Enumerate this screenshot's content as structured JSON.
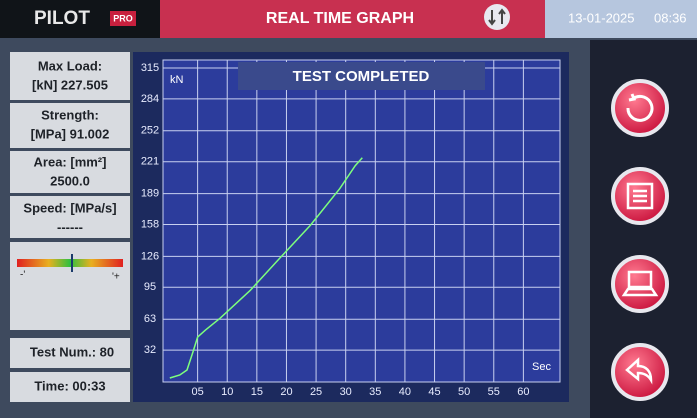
{
  "header": {
    "logo": "PILOT",
    "logo_badge": "PRO",
    "title": "REAL TIME GRAPH",
    "date": "13-01-2025",
    "time": "08:36"
  },
  "sidebar": {
    "max_load_label": "Max Load:",
    "max_load_value": "[kN] 227.505",
    "strength_label": "Strength:",
    "strength_value": "[MPa] 91.002",
    "area_label": "Area: [mm²]",
    "area_value": "2500.0",
    "speed_label": "Speed: [MPa/s]",
    "speed_value": "------",
    "scale_minus": "-'",
    "scale_plus": "'+",
    "test_num": "Test Num.: 80",
    "elapsed": "Time: 00:33"
  },
  "chart_data": {
    "type": "line",
    "status": "TEST COMPLETED",
    "y_unit": "kN",
    "x_unit": "Sec",
    "x": [
      0.3,
      2,
      3.2,
      4.2,
      5,
      6.3,
      8.8,
      13.9,
      19,
      24,
      29,
      31.6,
      32.8
    ],
    "series": [
      {
        "color": "#7dff7d",
        "values": [
          4,
          7,
          12,
          30,
          45,
          52,
          64,
          92,
          125,
          157,
          194,
          217,
          225
        ]
      }
    ],
    "xlim": [
      0,
      65
    ],
    "ylim": [
      0,
      315
    ],
    "xticks": [
      {
        "value": 5,
        "label": "05"
      },
      10,
      15,
      20,
      25,
      30,
      35,
      40,
      45,
      50,
      55,
      60
    ],
    "yticks": [
      32,
      63,
      95,
      126,
      158,
      189,
      221,
      252,
      284,
      315
    ],
    "grid": true
  }
}
